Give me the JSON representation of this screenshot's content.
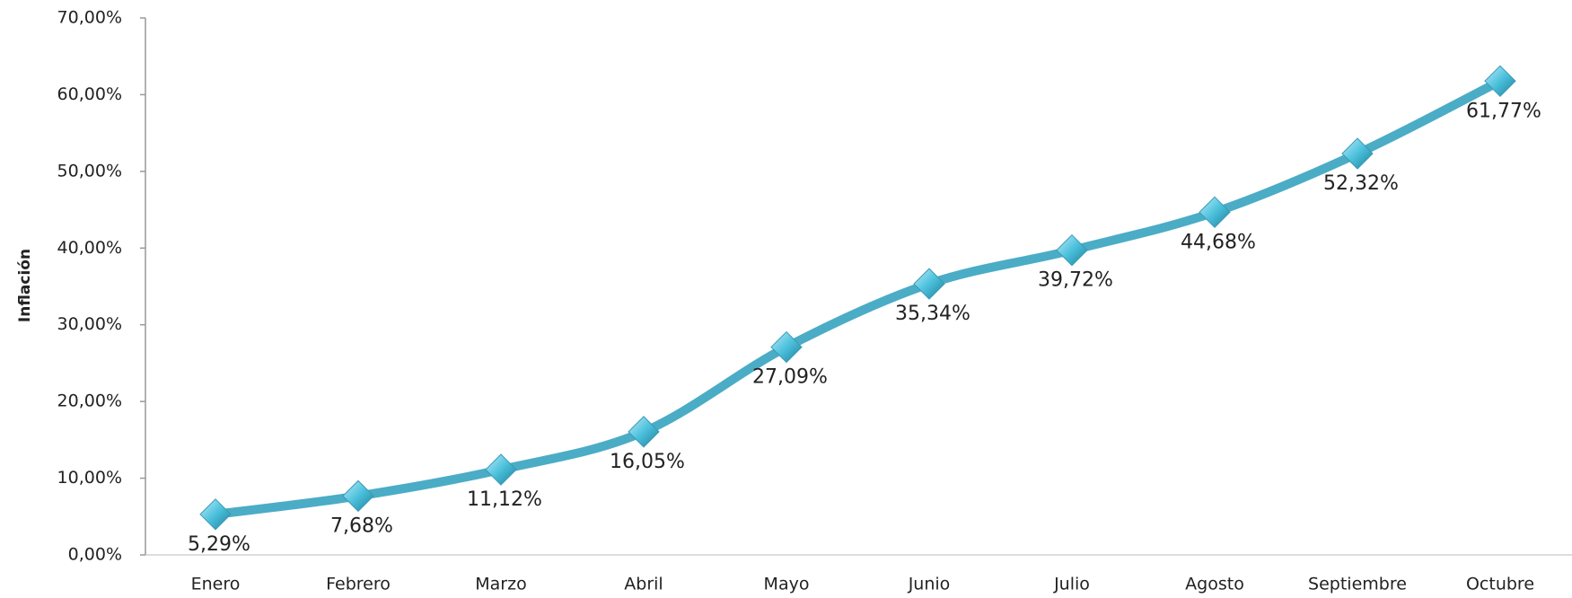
{
  "chart_data": {
    "type": "line",
    "y_label": "Inflación",
    "categories": [
      "Enero",
      "Febrero",
      "Marzo",
      "Abril",
      "Mayo",
      "Junio",
      "Julio",
      "Agosto",
      "Septiembre",
      "Octubre"
    ],
    "values": [
      5.29,
      7.68,
      11.12,
      16.05,
      27.09,
      35.34,
      39.72,
      44.68,
      52.32,
      61.77
    ],
    "value_labels": [
      "5,29%",
      "7,68%",
      "11,12%",
      "16,05%",
      "27,09%",
      "35,34%",
      "39,72%",
      "44,68%",
      "52,32%",
      "61,77%"
    ],
    "color": "#4bacc6",
    "smooth": true,
    "grid": false,
    "ylim": [
      0,
      70
    ],
    "yticks": [
      {
        "value": 0,
        "label": "0,00%"
      },
      {
        "value": 10,
        "label": "10,00%"
      },
      {
        "value": 20,
        "label": "20,00%"
      },
      {
        "value": 30,
        "label": "30,00%"
      },
      {
        "value": 40,
        "label": "40,00%"
      },
      {
        "value": 50,
        "label": "50,00%"
      },
      {
        "value": 60,
        "label": "60,00%"
      },
      {
        "value": 70,
        "label": "70,00%"
      }
    ]
  }
}
